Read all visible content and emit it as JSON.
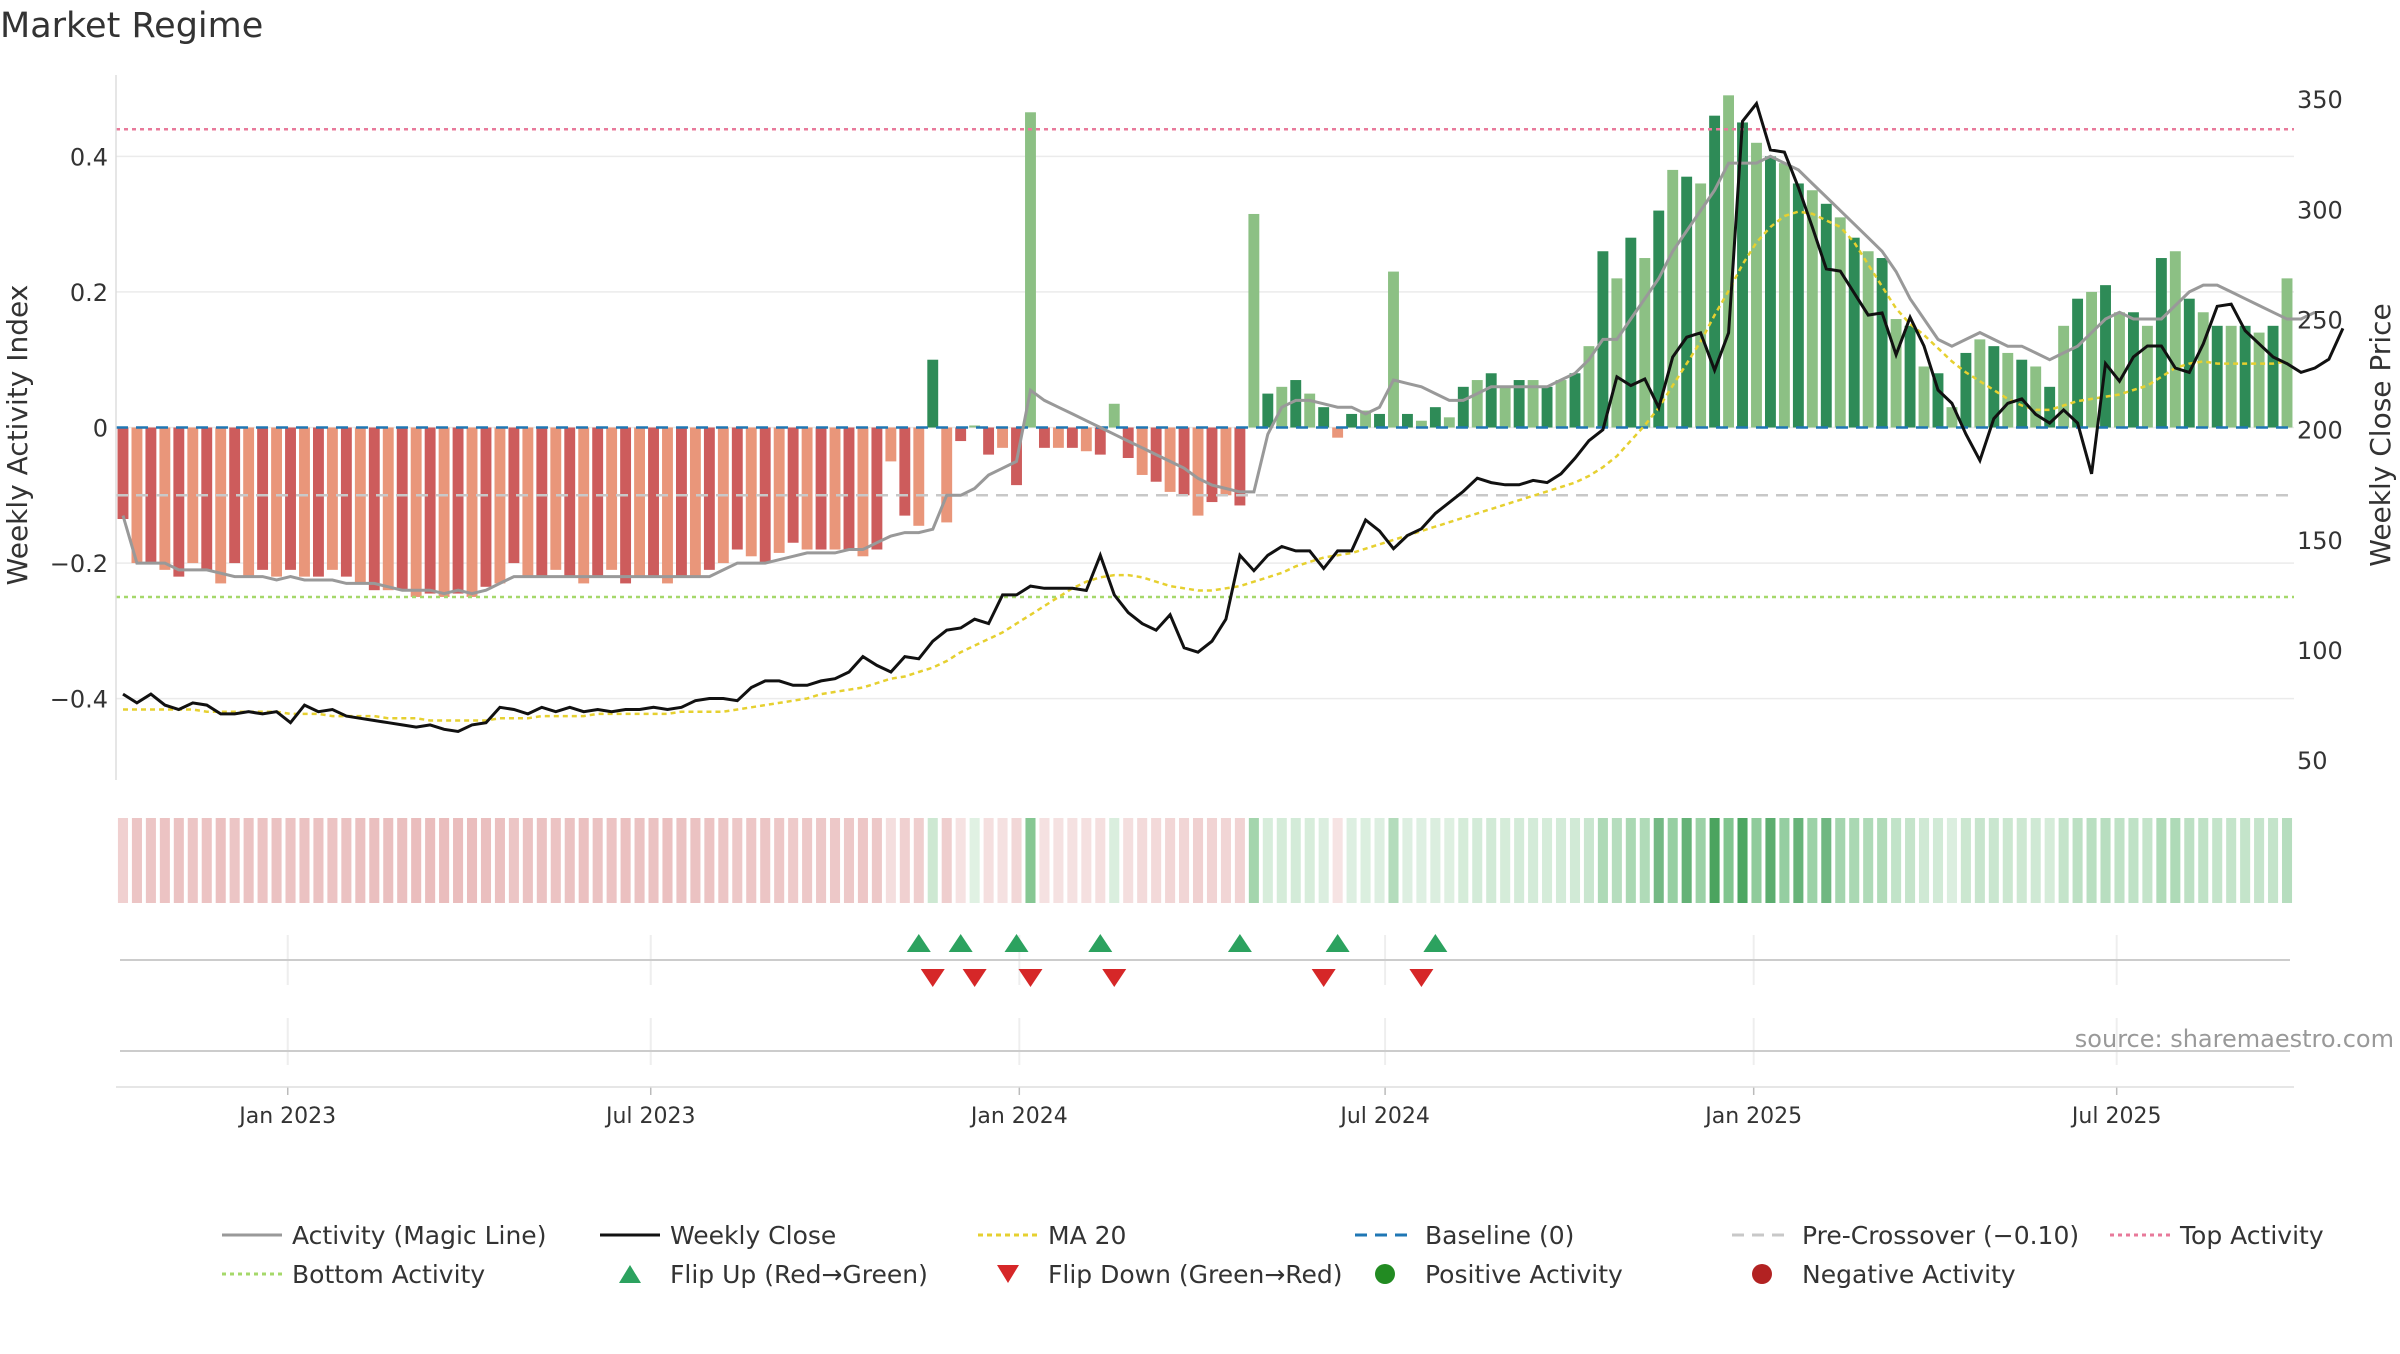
{
  "chart_data": {
    "type": "bar",
    "title": "Market Regime",
    "source": "source: sharemaestro.com",
    "x_tick_labels": [
      "Jan 2023",
      "Jul 2023",
      "Jan 2024",
      "Jul 2024",
      "Jan 2025",
      "Jul 2025"
    ],
    "x_tick_indices": [
      12.3,
      38.3,
      64.7,
      90.9,
      117.3,
      143.3
    ],
    "y_left": {
      "label": "Weekly Activity Index",
      "range": [
        -0.52,
        0.52
      ],
      "ticks": [
        -0.4,
        -0.2,
        0,
        0.2,
        0.4
      ],
      "tick_labels": [
        "−0.4",
        "−0.2",
        "0",
        "0.2",
        "0.4"
      ]
    },
    "y_right": {
      "label": "Weekly Close Price",
      "range": [
        41,
        361
      ],
      "ticks": [
        50,
        100,
        150,
        200,
        250,
        300,
        350
      ],
      "tick_labels": [
        "50",
        "100",
        "150",
        "200",
        "250",
        "300",
        "350"
      ]
    },
    "thresholds": {
      "top": 0.44,
      "bottom": -0.25,
      "pre_crossover": -0.1,
      "baseline": 0
    },
    "colors": {
      "pos_strong": "#2e8b57",
      "pos_light": "#8cc084",
      "neg_strong": "#cd5c5c",
      "neg_light": "#e9967a",
      "magic_line": "#999999",
      "weekly_close": "#111111",
      "ma20": "#e6d030",
      "baseline": "#1f77b4",
      "pre_crossover": "#c8c8c8",
      "top": "#e8799a",
      "bottom": "#a5d86a",
      "flip_up": "#2ca25f",
      "flip_down": "#d62728",
      "positive": "#228b22",
      "negative": "#b22222"
    },
    "series": [
      {
        "name": "Weekly Activity Index",
        "kind": "bar",
        "values": [
          -0.135,
          -0.2,
          -0.2,
          -0.21,
          -0.22,
          -0.2,
          -0.21,
          -0.23,
          -0.2,
          -0.22,
          -0.21,
          -0.22,
          -0.21,
          -0.22,
          -0.22,
          -0.21,
          -0.22,
          -0.23,
          -0.24,
          -0.24,
          -0.24,
          -0.25,
          -0.245,
          -0.25,
          -0.245,
          -0.25,
          -0.235,
          -0.23,
          -0.2,
          -0.22,
          -0.22,
          -0.21,
          -0.22,
          -0.23,
          -0.22,
          -0.21,
          -0.23,
          -0.22,
          -0.22,
          -0.23,
          -0.22,
          -0.22,
          -0.21,
          -0.2,
          -0.18,
          -0.19,
          -0.2,
          -0.185,
          -0.17,
          -0.18,
          -0.18,
          -0.18,
          -0.18,
          -0.19,
          -0.18,
          -0.05,
          -0.13,
          -0.145,
          0.1,
          -0.14,
          -0.02,
          0.003,
          -0.04,
          -0.03,
          -0.085,
          0.465,
          -0.03,
          -0.03,
          -0.03,
          -0.035,
          -0.04,
          0.035,
          -0.045,
          -0.07,
          -0.08,
          -0.095,
          -0.1,
          -0.13,
          -0.11,
          -0.1,
          -0.115,
          0.315,
          0.05,
          0.06,
          0.07,
          0.05,
          0.03,
          -0.015,
          0.02,
          0.025,
          0.02,
          0.23,
          0.02,
          0.01,
          0.03,
          0.015,
          0.06,
          0.07,
          0.08,
          0.06,
          0.07,
          0.07,
          0.06,
          0.07,
          0.08,
          0.12,
          0.26,
          0.22,
          0.28,
          0.25,
          0.32,
          0.38,
          0.37,
          0.36,
          0.46,
          0.49,
          0.45,
          0.42,
          0.4,
          0.39,
          0.36,
          0.35,
          0.33,
          0.31,
          0.28,
          0.26,
          0.25,
          0.16,
          0.15,
          0.09,
          0.08,
          0.03,
          0.11,
          0.13,
          0.12,
          0.11,
          0.1,
          0.09,
          0.06,
          0.15,
          0.19,
          0.2,
          0.21,
          0.17,
          0.17,
          0.15,
          0.25,
          0.26,
          0.19,
          0.17,
          0.15,
          0.15,
          0.15,
          0.14,
          0.15,
          0.22
        ],
        "categories_strong": [
          0,
          2,
          4,
          6,
          8,
          10,
          12,
          14,
          16,
          18,
          20,
          22,
          24,
          26,
          28,
          30,
          32,
          34,
          36,
          38,
          40,
          42,
          44,
          46,
          48,
          50,
          52,
          54,
          56,
          58,
          60,
          62,
          64,
          66,
          68,
          70,
          72,
          74,
          76,
          78,
          80,
          82,
          84,
          86,
          88,
          90,
          92,
          94,
          96,
          98,
          100,
          102,
          104,
          106,
          108,
          110,
          112,
          114,
          116,
          118,
          120,
          122,
          124,
          126,
          128,
          130,
          132,
          134,
          136,
          138,
          140,
          142,
          144,
          146,
          148,
          150,
          152,
          154
        ]
      },
      {
        "name": "Activity (Magic Line)",
        "kind": "line",
        "values": [
          -0.13,
          -0.2,
          -0.2,
          -0.2,
          -0.21,
          -0.21,
          -0.21,
          -0.215,
          -0.22,
          -0.22,
          -0.22,
          -0.225,
          -0.22,
          -0.225,
          -0.225,
          -0.225,
          -0.23,
          -0.23,
          -0.23,
          -0.235,
          -0.24,
          -0.24,
          -0.24,
          -0.245,
          -0.24,
          -0.245,
          -0.24,
          -0.23,
          -0.22,
          -0.22,
          -0.22,
          -0.22,
          -0.22,
          -0.22,
          -0.22,
          -0.22,
          -0.22,
          -0.22,
          -0.22,
          -0.22,
          -0.22,
          -0.22,
          -0.22,
          -0.21,
          -0.2,
          -0.2,
          -0.2,
          -0.195,
          -0.19,
          -0.185,
          -0.185,
          -0.185,
          -0.18,
          -0.18,
          -0.17,
          -0.16,
          -0.155,
          -0.155,
          -0.15,
          -0.1,
          -0.1,
          -0.09,
          -0.07,
          -0.06,
          -0.05,
          0.055,
          0.04,
          0.03,
          0.02,
          0.01,
          0.0,
          -0.01,
          -0.02,
          -0.03,
          -0.04,
          -0.05,
          -0.06,
          -0.075,
          -0.085,
          -0.09,
          -0.095,
          -0.095,
          -0.01,
          0.03,
          0.04,
          0.04,
          0.035,
          0.03,
          0.03,
          0.02,
          0.03,
          0.07,
          0.065,
          0.06,
          0.05,
          0.04,
          0.04,
          0.05,
          0.06,
          0.06,
          0.06,
          0.06,
          0.06,
          0.07,
          0.08,
          0.1,
          0.13,
          0.13,
          0.16,
          0.19,
          0.22,
          0.26,
          0.29,
          0.32,
          0.35,
          0.39,
          0.39,
          0.39,
          0.4,
          0.39,
          0.38,
          0.36,
          0.34,
          0.32,
          0.3,
          0.28,
          0.26,
          0.23,
          0.19,
          0.16,
          0.13,
          0.12,
          0.13,
          0.14,
          0.13,
          0.12,
          0.12,
          0.11,
          0.1,
          0.11,
          0.12,
          0.14,
          0.16,
          0.17,
          0.16,
          0.16,
          0.16,
          0.18,
          0.2,
          0.21,
          0.21,
          0.2,
          0.19,
          0.18,
          0.17,
          0.16,
          0.16,
          0.17
        ]
      },
      {
        "name": "Weekly Close",
        "kind": "line",
        "axis": "right",
        "values": [
          80,
          76,
          80,
          75,
          73,
          76,
          75,
          71,
          71,
          72,
          71,
          72,
          67,
          75,
          72,
          73,
          70,
          69,
          68,
          67,
          66,
          65,
          66,
          64,
          63,
          66,
          67,
          74,
          73,
          71,
          74,
          72,
          74,
          72,
          73,
          72,
          73,
          73,
          74,
          73,
          74,
          77,
          78,
          78,
          77,
          83,
          86,
          86,
          84,
          84,
          86,
          87,
          90,
          97,
          93,
          90,
          97,
          96,
          104,
          109,
          110,
          114,
          112,
          125,
          125,
          129,
          128,
          128,
          128,
          127,
          143,
          125,
          117,
          112,
          109,
          116,
          101,
          99,
          104,
          114,
          143,
          136,
          143,
          147,
          145,
          145,
          137,
          145,
          145,
          159,
          154,
          146,
          152,
          155,
          162,
          167,
          172,
          178,
          176,
          175,
          175,
          177,
          176,
          180,
          187,
          195,
          200,
          224,
          220,
          223,
          210,
          233,
          242,
          244,
          227,
          244,
          340,
          348,
          327,
          326,
          310,
          292,
          273,
          272,
          262,
          252,
          253,
          234,
          251,
          238,
          218,
          212,
          198,
          186,
          205,
          212,
          214,
          207,
          203,
          209,
          203,
          180,
          230,
          222,
          233,
          238,
          238,
          228,
          226,
          239,
          256,
          257,
          245,
          239,
          233,
          230,
          226,
          228,
          232,
          246
        ]
      },
      {
        "name": "MA 20",
        "kind": "line",
        "axis": "right",
        "values": [
          73,
          73,
          73,
          73,
          73,
          73,
          72,
          72,
          72,
          72,
          72,
          72,
          71,
          71,
          71,
          70,
          70,
          70,
          70,
          69,
          69,
          69,
          68,
          68,
          68,
          68,
          68,
          69,
          69,
          69,
          70,
          70,
          70,
          70,
          71,
          71,
          71,
          71,
          71,
          71,
          72,
          72,
          72,
          72,
          73,
          74,
          75,
          76,
          77,
          78,
          80,
          81,
          82,
          83,
          85,
          87,
          88,
          90,
          92,
          95,
          99,
          102,
          105,
          108,
          112,
          116,
          120,
          124,
          128,
          131,
          133,
          134,
          134,
          133,
          131,
          129,
          128,
          127,
          127,
          128,
          129,
          131,
          133,
          135,
          138,
          140,
          142,
          143,
          144,
          146,
          148,
          150,
          152,
          154,
          156,
          158,
          160,
          162,
          164,
          166,
          168,
          170,
          172,
          174,
          176,
          179,
          183,
          188,
          195,
          202,
          210,
          220,
          230,
          240,
          252,
          263,
          275,
          285,
          292,
          297,
          299,
          298,
          295,
          292,
          285,
          275,
          265,
          255,
          248,
          243,
          237,
          231,
          226,
          222,
          218,
          214,
          211,
          209,
          209,
          211,
          213,
          214,
          215,
          216,
          218,
          220,
          224,
          228,
          230,
          231,
          230,
          230,
          230,
          230,
          230,
          231
        ]
      }
    ],
    "flip_up_indices": [
      57,
      60,
      64,
      70,
      80,
      87,
      94
    ],
    "flip_down_indices": [
      58,
      61,
      65,
      71,
      86,
      93
    ],
    "legend": [
      {
        "label": "Activity (Magic Line)",
        "kind": "line",
        "color": "#999999",
        "dash": ""
      },
      {
        "label": "Weekly Close",
        "kind": "line",
        "color": "#111111",
        "dash": ""
      },
      {
        "label": "MA 20",
        "kind": "line",
        "color": "#e6d030",
        "dash": "5 4"
      },
      {
        "label": "Baseline (0)",
        "kind": "line",
        "color": "#1f77b4",
        "dash": "12 8"
      },
      {
        "label": "Pre-Crossover (−0.10)",
        "kind": "line",
        "color": "#c8c8c8",
        "dash": "12 8"
      },
      {
        "label": "Top Activity",
        "kind": "line",
        "color": "#e8799a",
        "dash": "4 4"
      },
      {
        "label": "Bottom Activity",
        "kind": "line",
        "color": "#a5d86a",
        "dash": "4 4"
      },
      {
        "label": "Flip Up (Red→Green)",
        "kind": "tri-up",
        "color": "#2ca25f",
        "dash": ""
      },
      {
        "label": "Flip Down (Green→Red)",
        "kind": "tri-down",
        "color": "#d62728",
        "dash": ""
      },
      {
        "label": "Positive Activity",
        "kind": "dot",
        "color": "#228b22",
        "dash": ""
      },
      {
        "label": "Negative Activity",
        "kind": "dot",
        "color": "#b22222",
        "dash": ""
      }
    ]
  }
}
